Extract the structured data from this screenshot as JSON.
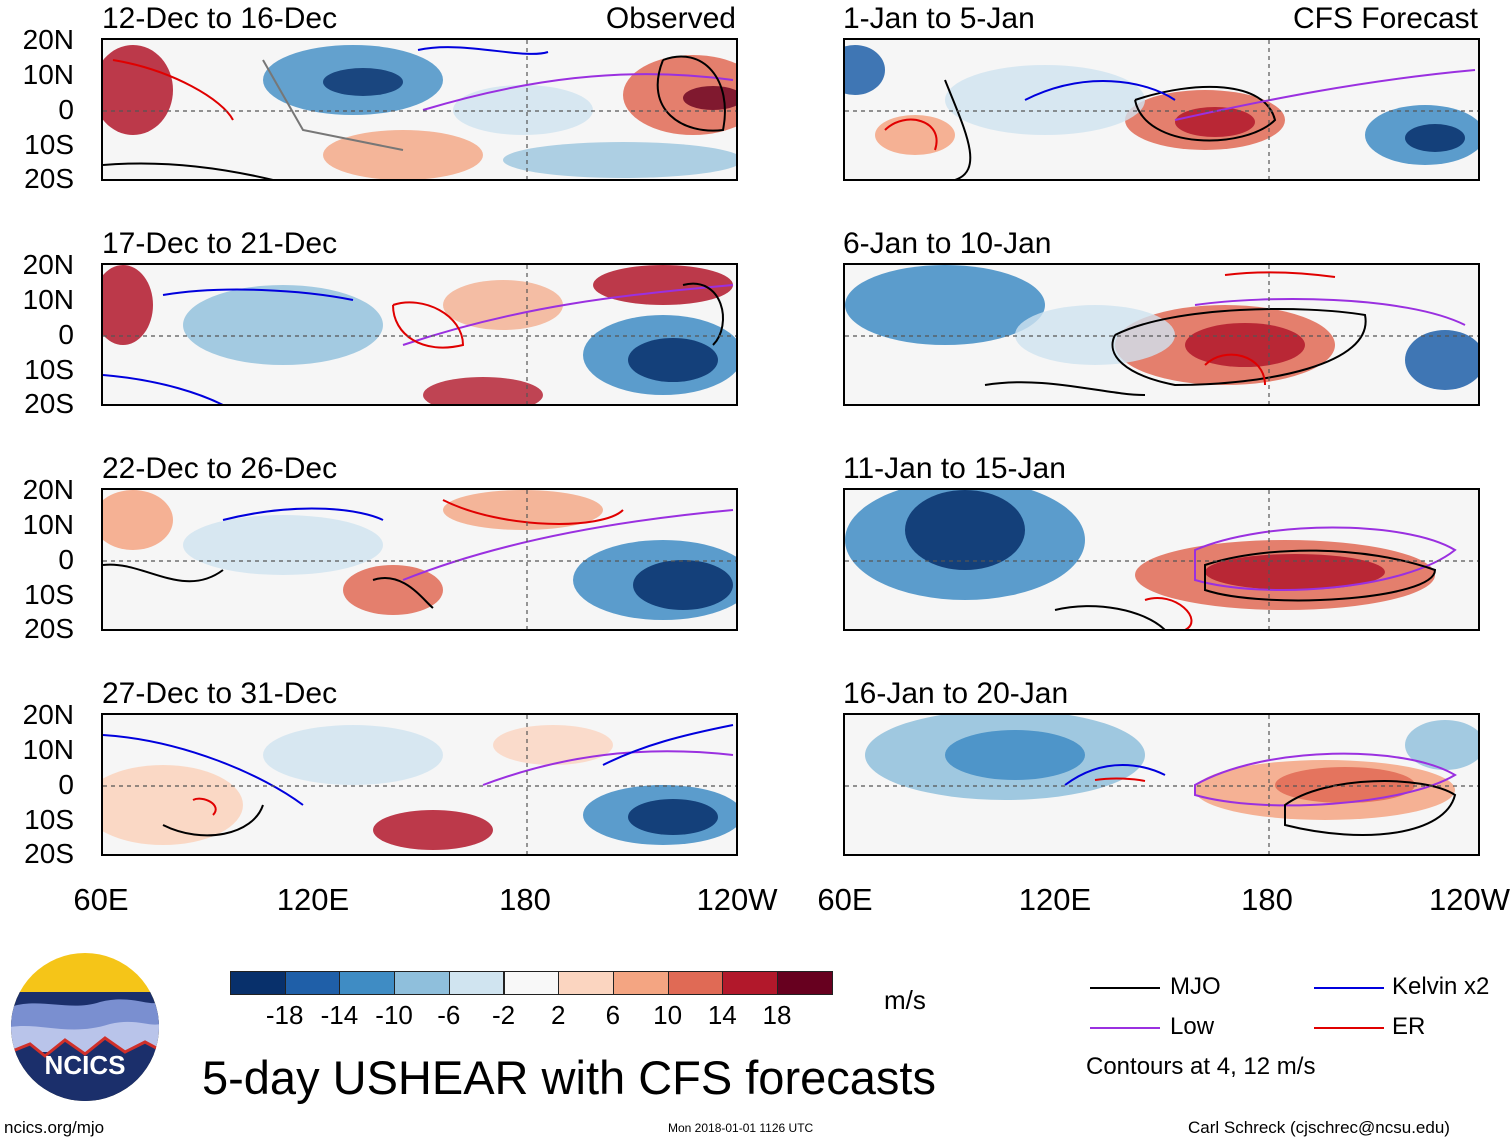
{
  "observed_tag": "Observed",
  "forecast_tag": "CFS Forecast",
  "panels_left": [
    {
      "title": "12-Dec to 16-Dec"
    },
    {
      "title": "17-Dec to 21-Dec"
    },
    {
      "title": "22-Dec to 26-Dec"
    },
    {
      "title": "27-Dec to 31-Dec"
    }
  ],
  "panels_right": [
    {
      "title": "1-Jan to 5-Jan"
    },
    {
      "title": "6-Jan to 10-Jan"
    },
    {
      "title": "11-Jan to 15-Jan"
    },
    {
      "title": "16-Jan to 20-Jan"
    }
  ],
  "lat_labels": [
    "20N",
    "10N",
    "0",
    "10S",
    "20S"
  ],
  "lon_labels": [
    "60E",
    "120E",
    "180",
    "120W"
  ],
  "colorbar": {
    "colors": [
      "#08306b",
      "#1f5fa8",
      "#3f8cc4",
      "#8fbfdc",
      "#d0e4f0",
      "#f8f8f8",
      "#fbd5c0",
      "#f4a582",
      "#e06a55",
      "#b2182b",
      "#67001f"
    ],
    "labels": [
      "-18",
      "-14",
      "-10",
      "-6",
      "-2",
      "2",
      "6",
      "10",
      "14",
      "18"
    ],
    "units": "m/s"
  },
  "legend": {
    "mjo": {
      "label": "MJO",
      "color": "#000000"
    },
    "kelvin": {
      "label": "Kelvin x2",
      "color": "#0000dd"
    },
    "low": {
      "label": "Low",
      "color": "#9a30e0"
    },
    "er": {
      "label": "ER",
      "color": "#e00000"
    },
    "note": "Contours at 4, 12 m/s"
  },
  "main_title": "5-day USHEAR with CFS forecasts",
  "logo_text": "NCICS",
  "footer": {
    "left": "ncics.org/mjo",
    "center": "Mon 2018-01-01 1126 UTC",
    "right": "Carl Schreck (cjschrec@ncsu.edu)"
  }
}
